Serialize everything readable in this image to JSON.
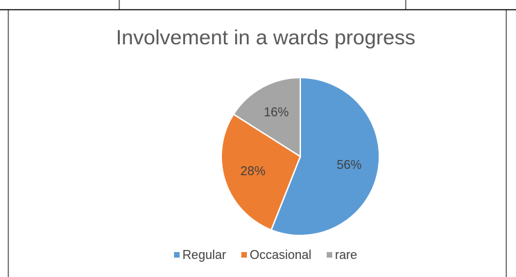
{
  "chart_data": {
    "type": "pie",
    "title": "Involvement in a wards progress",
    "categories": [
      "Regular",
      "Occasional",
      "rare"
    ],
    "values": [
      56,
      28,
      16
    ],
    "value_labels": [
      "56%",
      "28%",
      "16%"
    ],
    "colors": [
      "#5b9bd5",
      "#ed7d31",
      "#a5a5a5"
    ],
    "legend": "bottom"
  }
}
